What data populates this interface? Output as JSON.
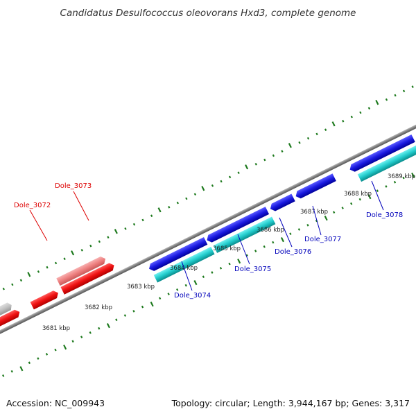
{
  "title": "Candidatus Desulfococcus oleovorans Hxd3, complete genome",
  "footer": {
    "accession": "Accession: NC_009943",
    "summary": "Topology: circular; Length: 3,944,167 bp; Genes: 3,317"
  },
  "scale": {
    "kbp_labels": [
      "3681 kbp",
      "3682 kbp",
      "3683 kbp",
      "3684 kbp",
      "3685 kbp",
      "3686 kbp",
      "3687 kbp",
      "3688 kbp",
      "3689 kbp"
    ]
  },
  "genes": [
    {
      "name": "Dole_3072",
      "strand": "forward",
      "color": "#dd0000"
    },
    {
      "name": "Dole_3073",
      "strand": "forward",
      "color": "#dd0000"
    },
    {
      "name": "Dole_3074",
      "strand": "reverse",
      "color": "#0000bb"
    },
    {
      "name": "Dole_3075",
      "strand": "reverse",
      "color": "#0000bb"
    },
    {
      "name": "Dole_3076",
      "strand": "reverse",
      "color": "#0000bb"
    },
    {
      "name": "Dole_3077",
      "strand": "reverse",
      "color": "#0000bb"
    },
    {
      "name": "Dole_3078",
      "strand": "reverse",
      "color": "#0000bb"
    }
  ],
  "colors": {
    "background": "#ffffff",
    "backbone": "#808080",
    "tick": "#1e7a1e",
    "forward_gene": "#ee1111",
    "forward_gene_light": "#ee8080",
    "reverse_gene": "#1a1ae0",
    "reverse_cds": "#22cccc",
    "gray_gene": "#c0c0c0"
  }
}
